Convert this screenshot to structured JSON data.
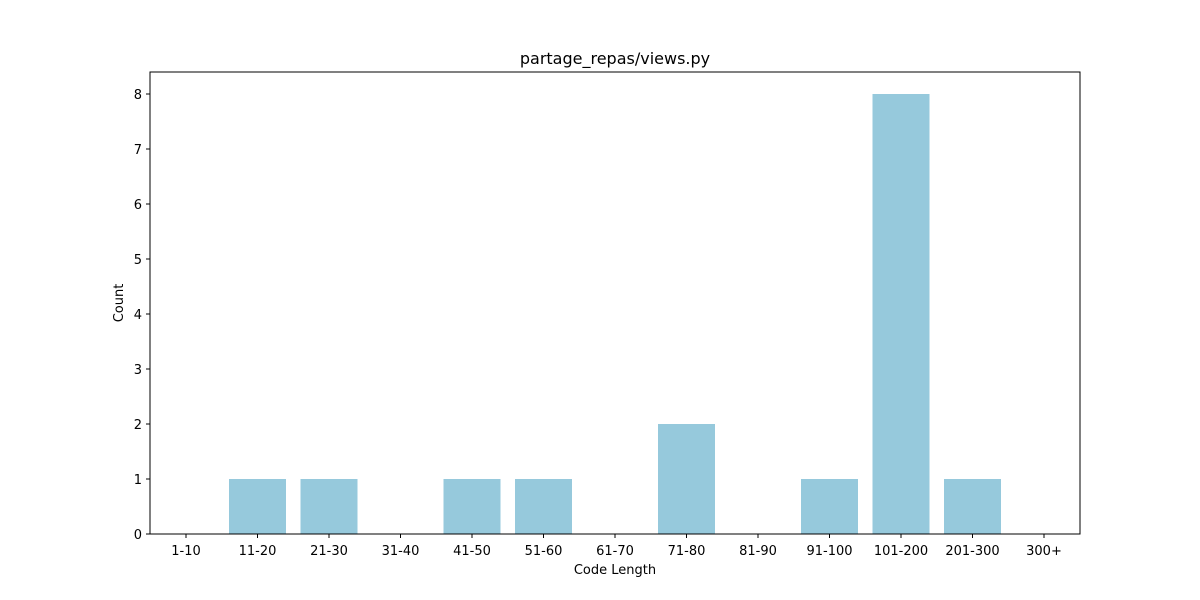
{
  "chart_data": {
    "type": "bar",
    "title": "partage_repas/views.py",
    "xlabel": "Code Length",
    "ylabel": "Count",
    "categories": [
      "1-10",
      "11-20",
      "21-30",
      "31-40",
      "41-50",
      "51-60",
      "61-70",
      "71-80",
      "81-90",
      "91-100",
      "101-200",
      "201-300",
      "300+"
    ],
    "values": [
      0,
      1,
      1,
      0,
      1,
      1,
      0,
      2,
      0,
      1,
      8,
      1,
      0
    ],
    "ylim": [
      0,
      8.4
    ],
    "yticks": [
      0,
      1,
      2,
      3,
      4,
      5,
      6,
      7,
      8
    ],
    "bar_color": "#96c9dc",
    "grid": false,
    "legend": false
  }
}
